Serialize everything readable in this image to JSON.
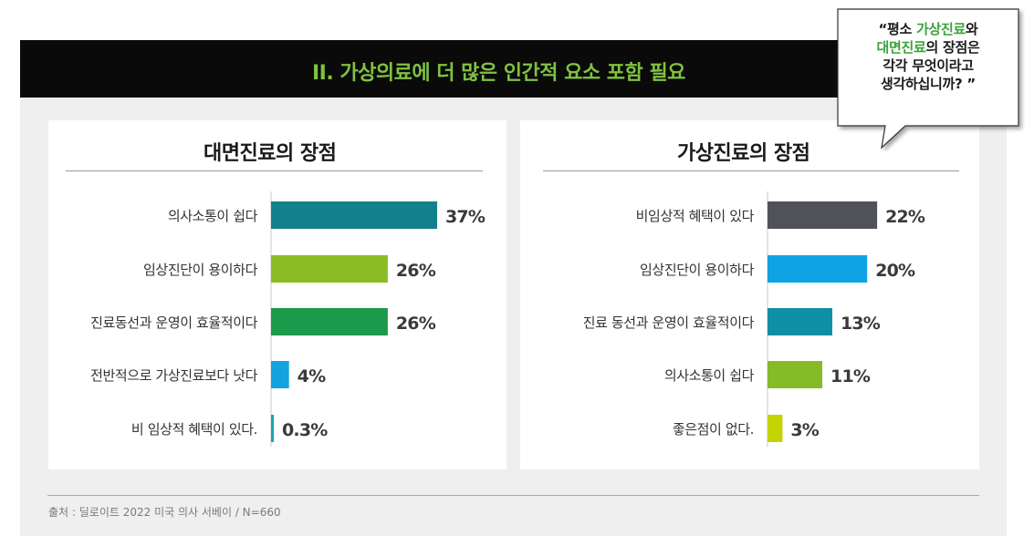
{
  "header": {
    "title": "II. 가상의료에 더 많은 인간적 요소 포함 필요"
  },
  "callout": {
    "line1_pre": "“평소 ",
    "line1_hl": "가상진료",
    "line1_post": "와",
    "line2_hl": "대면진료",
    "line2_post": "의 장점은",
    "line3": "각각 무엇이라고",
    "line4": "생각하십니까? ”",
    "highlight_color": "#3aa33a"
  },
  "footer": {
    "source": "출처 : 딜로이트 2022 미국 의사 서베이 / N=660"
  },
  "chart_data": [
    {
      "type": "bar",
      "orientation": "horizontal",
      "title": "대면진료의 장점",
      "categories": [
        "의사소통이 쉽다",
        "임상진단이 용이하다",
        "진료동선과 운영이 효율적이다",
        "전반적으로 가상진료보다 낫다",
        "비 임상적 혜택이 있다."
      ],
      "values": [
        37,
        26,
        26,
        4,
        0.3
      ],
      "value_labels": [
        "37%",
        "26%",
        "26%",
        "4%",
        "0.3%"
      ],
      "unit": "%",
      "colors": [
        "#12818c",
        "#8abd24",
        "#1a9a4a",
        "#13a3e0",
        "#1aa3b8"
      ],
      "xlim": [
        0,
        37
      ]
    },
    {
      "type": "bar",
      "orientation": "horizontal",
      "title": "가상진료의 장점",
      "categories": [
        "비임상적 혜택이 있다",
        "임상진단이 용이하다",
        "진료 동선과 운영이 효율적이다",
        "의사소통이 쉽다",
        "좋은점이 없다."
      ],
      "values": [
        22,
        20,
        13,
        11,
        3
      ],
      "value_labels": [
        "22%",
        "20%",
        "13%",
        "11%",
        "3%"
      ],
      "unit": "%",
      "colors": [
        "#4f5257",
        "#0ea3e3",
        "#0f8fa5",
        "#86bb28",
        "#c3d400"
      ],
      "xlim": [
        0,
        37
      ]
    }
  ]
}
